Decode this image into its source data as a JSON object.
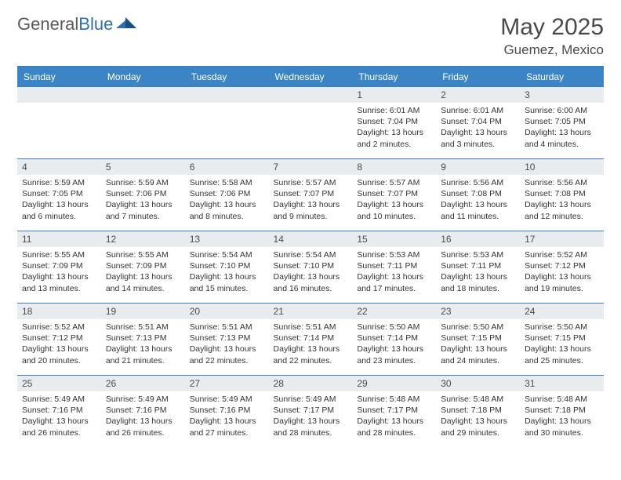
{
  "brand": {
    "name_gray": "General",
    "name_blue": "Blue"
  },
  "title": "May 2025",
  "location": "Guemez, Mexico",
  "colors": {
    "header_bg": "#3b85c6",
    "header_text": "#ffffff",
    "rule": "#3a7fc0",
    "daynum_bg": "#e8ecef",
    "text": "#333333",
    "title_color": "#4a4a4a"
  },
  "weekdays": [
    "Sunday",
    "Monday",
    "Tuesday",
    "Wednesday",
    "Thursday",
    "Friday",
    "Saturday"
  ],
  "weeks": [
    [
      null,
      null,
      null,
      null,
      {
        "n": "1",
        "sr": "Sunrise: 6:01 AM",
        "ss": "Sunset: 7:04 PM",
        "dl": "Daylight: 13 hours and 2 minutes."
      },
      {
        "n": "2",
        "sr": "Sunrise: 6:01 AM",
        "ss": "Sunset: 7:04 PM",
        "dl": "Daylight: 13 hours and 3 minutes."
      },
      {
        "n": "3",
        "sr": "Sunrise: 6:00 AM",
        "ss": "Sunset: 7:05 PM",
        "dl": "Daylight: 13 hours and 4 minutes."
      }
    ],
    [
      {
        "n": "4",
        "sr": "Sunrise: 5:59 AM",
        "ss": "Sunset: 7:05 PM",
        "dl": "Daylight: 13 hours and 6 minutes."
      },
      {
        "n": "5",
        "sr": "Sunrise: 5:59 AM",
        "ss": "Sunset: 7:06 PM",
        "dl": "Daylight: 13 hours and 7 minutes."
      },
      {
        "n": "6",
        "sr": "Sunrise: 5:58 AM",
        "ss": "Sunset: 7:06 PM",
        "dl": "Daylight: 13 hours and 8 minutes."
      },
      {
        "n": "7",
        "sr": "Sunrise: 5:57 AM",
        "ss": "Sunset: 7:07 PM",
        "dl": "Daylight: 13 hours and 9 minutes."
      },
      {
        "n": "8",
        "sr": "Sunrise: 5:57 AM",
        "ss": "Sunset: 7:07 PM",
        "dl": "Daylight: 13 hours and 10 minutes."
      },
      {
        "n": "9",
        "sr": "Sunrise: 5:56 AM",
        "ss": "Sunset: 7:08 PM",
        "dl": "Daylight: 13 hours and 11 minutes."
      },
      {
        "n": "10",
        "sr": "Sunrise: 5:56 AM",
        "ss": "Sunset: 7:08 PM",
        "dl": "Daylight: 13 hours and 12 minutes."
      }
    ],
    [
      {
        "n": "11",
        "sr": "Sunrise: 5:55 AM",
        "ss": "Sunset: 7:09 PM",
        "dl": "Daylight: 13 hours and 13 minutes."
      },
      {
        "n": "12",
        "sr": "Sunrise: 5:55 AM",
        "ss": "Sunset: 7:09 PM",
        "dl": "Daylight: 13 hours and 14 minutes."
      },
      {
        "n": "13",
        "sr": "Sunrise: 5:54 AM",
        "ss": "Sunset: 7:10 PM",
        "dl": "Daylight: 13 hours and 15 minutes."
      },
      {
        "n": "14",
        "sr": "Sunrise: 5:54 AM",
        "ss": "Sunset: 7:10 PM",
        "dl": "Daylight: 13 hours and 16 minutes."
      },
      {
        "n": "15",
        "sr": "Sunrise: 5:53 AM",
        "ss": "Sunset: 7:11 PM",
        "dl": "Daylight: 13 hours and 17 minutes."
      },
      {
        "n": "16",
        "sr": "Sunrise: 5:53 AM",
        "ss": "Sunset: 7:11 PM",
        "dl": "Daylight: 13 hours and 18 minutes."
      },
      {
        "n": "17",
        "sr": "Sunrise: 5:52 AM",
        "ss": "Sunset: 7:12 PM",
        "dl": "Daylight: 13 hours and 19 minutes."
      }
    ],
    [
      {
        "n": "18",
        "sr": "Sunrise: 5:52 AM",
        "ss": "Sunset: 7:12 PM",
        "dl": "Daylight: 13 hours and 20 minutes."
      },
      {
        "n": "19",
        "sr": "Sunrise: 5:51 AM",
        "ss": "Sunset: 7:13 PM",
        "dl": "Daylight: 13 hours and 21 minutes."
      },
      {
        "n": "20",
        "sr": "Sunrise: 5:51 AM",
        "ss": "Sunset: 7:13 PM",
        "dl": "Daylight: 13 hours and 22 minutes."
      },
      {
        "n": "21",
        "sr": "Sunrise: 5:51 AM",
        "ss": "Sunset: 7:14 PM",
        "dl": "Daylight: 13 hours and 22 minutes."
      },
      {
        "n": "22",
        "sr": "Sunrise: 5:50 AM",
        "ss": "Sunset: 7:14 PM",
        "dl": "Daylight: 13 hours and 23 minutes."
      },
      {
        "n": "23",
        "sr": "Sunrise: 5:50 AM",
        "ss": "Sunset: 7:15 PM",
        "dl": "Daylight: 13 hours and 24 minutes."
      },
      {
        "n": "24",
        "sr": "Sunrise: 5:50 AM",
        "ss": "Sunset: 7:15 PM",
        "dl": "Daylight: 13 hours and 25 minutes."
      }
    ],
    [
      {
        "n": "25",
        "sr": "Sunrise: 5:49 AM",
        "ss": "Sunset: 7:16 PM",
        "dl": "Daylight: 13 hours and 26 minutes."
      },
      {
        "n": "26",
        "sr": "Sunrise: 5:49 AM",
        "ss": "Sunset: 7:16 PM",
        "dl": "Daylight: 13 hours and 26 minutes."
      },
      {
        "n": "27",
        "sr": "Sunrise: 5:49 AM",
        "ss": "Sunset: 7:16 PM",
        "dl": "Daylight: 13 hours and 27 minutes."
      },
      {
        "n": "28",
        "sr": "Sunrise: 5:49 AM",
        "ss": "Sunset: 7:17 PM",
        "dl": "Daylight: 13 hours and 28 minutes."
      },
      {
        "n": "29",
        "sr": "Sunrise: 5:48 AM",
        "ss": "Sunset: 7:17 PM",
        "dl": "Daylight: 13 hours and 28 minutes."
      },
      {
        "n": "30",
        "sr": "Sunrise: 5:48 AM",
        "ss": "Sunset: 7:18 PM",
        "dl": "Daylight: 13 hours and 29 minutes."
      },
      {
        "n": "31",
        "sr": "Sunrise: 5:48 AM",
        "ss": "Sunset: 7:18 PM",
        "dl": "Daylight: 13 hours and 30 minutes."
      }
    ]
  ]
}
